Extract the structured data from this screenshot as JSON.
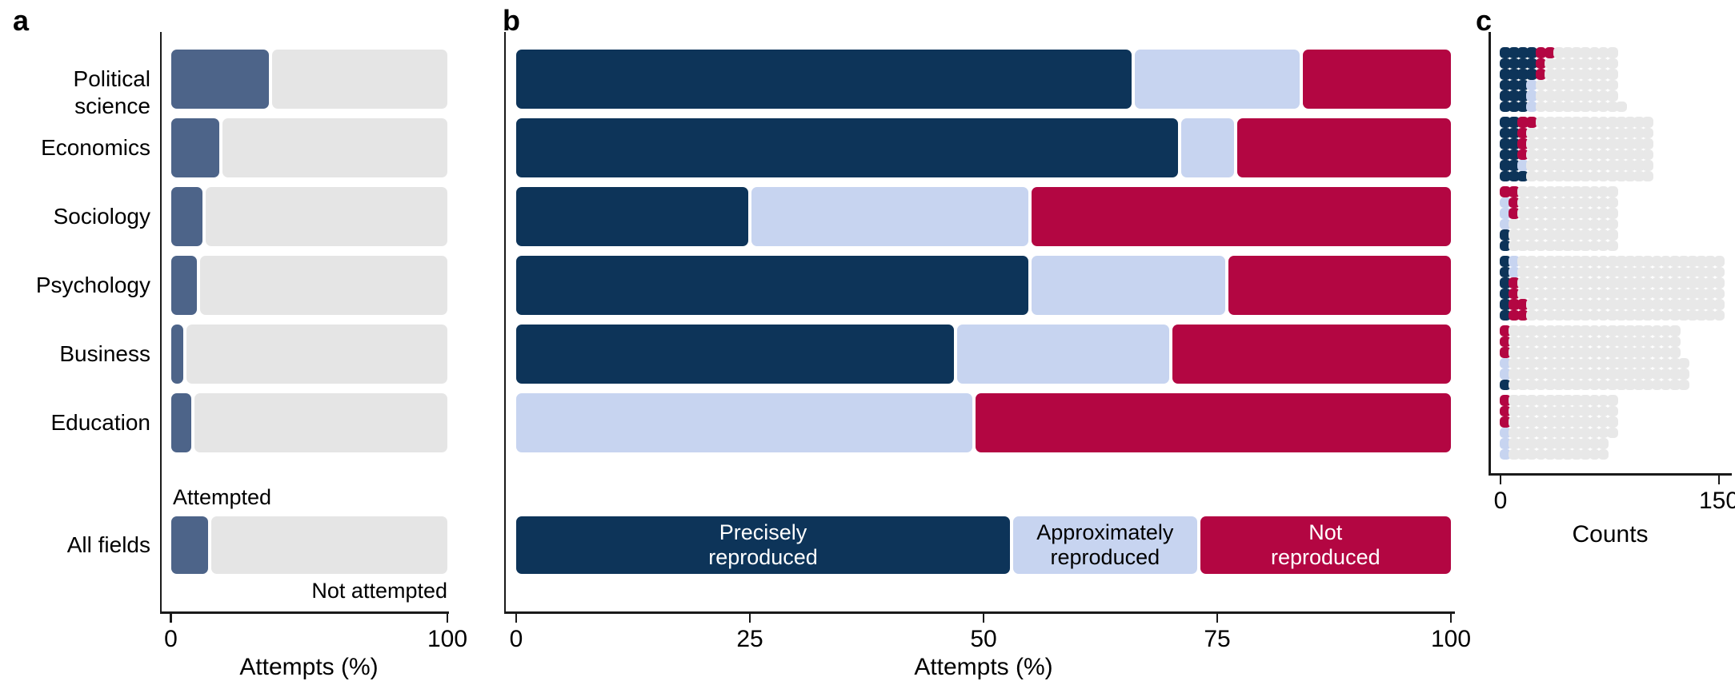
{
  "panel_a": {
    "letter": "a",
    "axis_title": "Attempts (%)",
    "ticks": [
      "0",
      "100"
    ],
    "annotations": {
      "above": "Attempted",
      "below": "Not attempted"
    },
    "rows": [
      {
        "label": "Political science",
        "attempted": 36
      },
      {
        "label": "Economics",
        "attempted": 18
      },
      {
        "label": "Sociology",
        "attempted": 12
      },
      {
        "label": "Psychology",
        "attempted": 10
      },
      {
        "label": "Business",
        "attempted": 5
      },
      {
        "label": "Education",
        "attempted": 8
      },
      {
        "label": "All fields",
        "attempted": 14,
        "summary": true
      }
    ]
  },
  "panel_b": {
    "letter": "b",
    "axis_title": "Attempts (%)",
    "ticks": [
      "0",
      "25",
      "50",
      "75",
      "100"
    ],
    "segment_labels": [
      "Precisely\nreproduced",
      "Approximately\nreproduced",
      "Not\nreproduced"
    ],
    "rows": [
      {
        "label": "Political science",
        "precisely": 66,
        "approximately": 18,
        "not_reproduced": 16
      },
      {
        "label": "Economics",
        "precisely": 71,
        "approximately": 6,
        "not_reproduced": 23
      },
      {
        "label": "Sociology",
        "precisely": 25,
        "approximately": 30,
        "not_reproduced": 45
      },
      {
        "label": "Psychology",
        "precisely": 55,
        "approximately": 21,
        "not_reproduced": 24
      },
      {
        "label": "Business",
        "precisely": 47,
        "approximately": 23,
        "not_reproduced": 30
      },
      {
        "label": "Education",
        "precisely": 0,
        "approximately": 49,
        "not_reproduced": 51
      },
      {
        "label": "All fields",
        "precisely": 53,
        "approximately": 20,
        "not_reproduced": 27,
        "summary": true
      }
    ]
  },
  "panel_c": {
    "letter": "c",
    "axis_title": "Counts",
    "ticks": [
      "0",
      "150"
    ],
    "blocks": [
      {
        "field": "Political science",
        "rows": [
          "NNNNRRGGGGGGG",
          "NNNNRGGGGGGGG",
          "NNNNRGGGGGGGG",
          "NNNBGGGGGGGGG",
          "NNNBGGGGGGGGG",
          "NNNBGGGGGGGGGG"
        ]
      },
      {
        "field": "Economics",
        "rows": [
          "NNRRGGGGGGGGGGGGG",
          "NNRGGGGGGGGGGGGGG",
          "NNRGGGGGGGGGGGGGG",
          "NNRGGGGGGGGGGGGGG",
          "NNBGGGGGGGGGGGGGG",
          "NNNGGGGGGGGGGGGGG"
        ]
      },
      {
        "field": "Sociology",
        "rows": [
          "RRGGGGGGGGGGG",
          "BRGGGGGGGGGGG",
          "BRGGGGGGGGGGG",
          "BGGGGGGGGGGGG",
          "NGGGGGGGGGGGG",
          "NGGGGGGGGGGGG"
        ]
      },
      {
        "field": "Psychology",
        "rows": [
          "NBGGGGGGGGGGGGGGGGGGGGGGG",
          "NBGGGGGGGGGGGGGGGGGGGGGGG",
          "NRGGGGGGGGGGGGGGGGGGGGGGG",
          "NRGGGGGGGGGGGGGGGGGGGGGGG",
          "NRRGGGGGGGGGGGGGGGGGGGGGG",
          "NRRGGGGGGGGGGGGGGGGGGGGGG"
        ]
      },
      {
        "field": "Business",
        "rows": [
          "RGGGGGGGGGGGGGGGGGGG",
          "RGGGGGGGGGGGGGGGGGGG",
          "RGGGGGGGGGGGGGGGGGGG",
          "BGGGGGGGGGGGGGGGGGGGG",
          "BGGGGGGGGGGGGGGGGGGGG",
          "NGGGGGGGGGGGGGGGGGGGG"
        ]
      },
      {
        "field": "Education",
        "rows": [
          "RGGGGGGGGGGGG",
          "RGGGGGGGGGGGG",
          "RGGGGGGGGGGGG",
          "BGGGGGGGGGGGG",
          "BGGGGGGGGGGG",
          "BGGGGGGGGGGG"
        ]
      }
    ]
  },
  "colors": {
    "attempted_slate": "#4d6489",
    "precisely_navy": "#0d3459",
    "approximately_lightblue": "#c7d4f0",
    "not_reproduced_crimson": "#b30642",
    "not_attempted_gray": "#e5e5e5",
    "dot_gray": "#e8e8e8",
    "axis": "#1a1a1a",
    "text": "#000000"
  },
  "chart_data": [
    {
      "id": "a",
      "type": "bar",
      "subtype": "stacked-horizontal",
      "title": "",
      "categories": [
        "Political science",
        "Economics",
        "Sociology",
        "Psychology",
        "Business",
        "Education",
        "All fields"
      ],
      "series": [
        {
          "name": "Attempted",
          "values": [
            36,
            18,
            12,
            10,
            5,
            8,
            14
          ]
        },
        {
          "name": "Not attempted",
          "values": [
            64,
            82,
            88,
            90,
            95,
            92,
            86
          ]
        }
      ],
      "xlabel": "Attempts (%)",
      "xlim": [
        0,
        100
      ],
      "xticks": [
        0,
        100
      ],
      "grid": false,
      "legend_position": "annotations on All fields row"
    },
    {
      "id": "b",
      "type": "bar",
      "subtype": "stacked-horizontal",
      "title": "",
      "categories": [
        "Political science",
        "Economics",
        "Sociology",
        "Psychology",
        "Business",
        "Education",
        "All fields"
      ],
      "series": [
        {
          "name": "Precisely reproduced",
          "values": [
            66,
            71,
            25,
            55,
            47,
            0,
            53
          ]
        },
        {
          "name": "Approximately reproduced",
          "values": [
            18,
            6,
            30,
            21,
            23,
            49,
            20
          ]
        },
        {
          "name": "Not reproduced",
          "values": [
            16,
            23,
            45,
            24,
            30,
            51,
            27
          ]
        }
      ],
      "xlabel": "Attempts (%)",
      "xlim": [
        0,
        100
      ],
      "xticks": [
        0,
        25,
        50,
        75,
        100
      ],
      "grid": false,
      "legend_position": "labels inside All fields bar"
    },
    {
      "id": "c",
      "type": "heatmap",
      "subtype": "dot-waffle (1 dot = 1 study, 6 dots per column)",
      "categories": [
        "Political science",
        "Economics",
        "Sociology",
        "Psychology",
        "Business",
        "Education"
      ],
      "series": [
        {
          "name": "Precisely reproduced",
          "values": [
            21,
            13,
            2,
            6,
            1,
            0
          ]
        },
        {
          "name": "Approximately reproduced",
          "values": [
            3,
            1,
            3,
            2,
            2,
            3
          ]
        },
        {
          "name": "Not reproduced",
          "values": [
            4,
            5,
            4,
            6,
            3,
            3
          ]
        },
        {
          "name": "Not attempted",
          "values": [
            51,
            83,
            69,
            136,
            117,
            70
          ]
        }
      ],
      "totals": [
        79,
        102,
        78,
        150,
        123,
        76
      ],
      "xlabel": "Counts",
      "xlim": [
        0,
        150
      ],
      "xticks": [
        0,
        150
      ],
      "grid": false
    }
  ]
}
